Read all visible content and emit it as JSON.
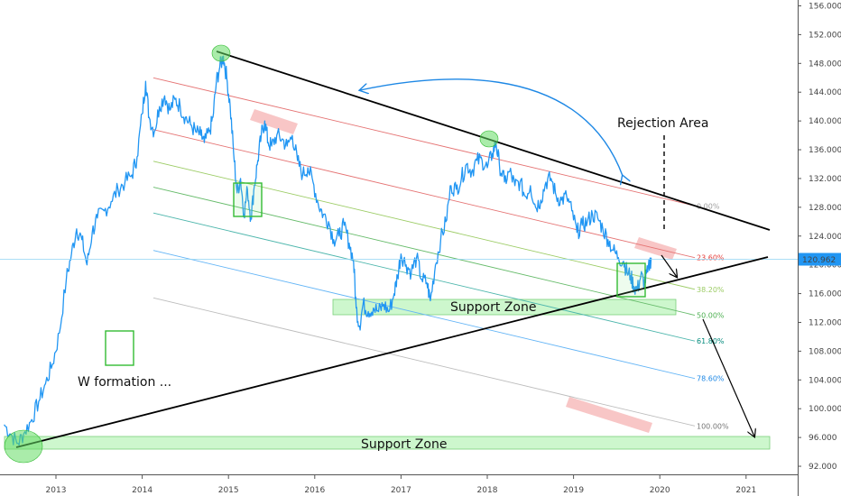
{
  "chart_data": {
    "type": "line",
    "title": "",
    "xlabel": "",
    "ylabel": "",
    "ylim": [
      91,
      156.5
    ],
    "xlim": [
      2012.4,
      2021.6
    ],
    "grid": false,
    "y_ticks": [
      "92.000",
      "96.000",
      "100.000",
      "104.000",
      "108.000",
      "112.000",
      "116.000",
      "120.000",
      "124.000",
      "128.000",
      "132.000",
      "136.000",
      "140.000",
      "144.000",
      "148.000",
      "152.000",
      "156.000"
    ],
    "x_ticks": [
      "2013",
      "2014",
      "2015",
      "2016",
      "2017",
      "2018",
      "2019",
      "2020",
      "2021"
    ],
    "current_price": {
      "value": 120.962,
      "label": "120.962",
      "color": "#2196f3"
    },
    "series": [
      {
        "color": "#2196f3",
        "points": [
          [
            2012.4,
            97.8
          ],
          [
            2012.48,
            96.4
          ],
          [
            2012.56,
            95.2
          ],
          [
            2012.64,
            96.8
          ],
          [
            2012.72,
            98.5
          ],
          [
            2012.8,
            101.0
          ],
          [
            2012.88,
            103.5
          ],
          [
            2012.96,
            106.2
          ],
          [
            2013.04,
            110.5
          ],
          [
            2013.12,
            118.0
          ],
          [
            2013.18,
            121.5
          ],
          [
            2013.24,
            125.0
          ],
          [
            2013.3,
            123.5
          ],
          [
            2013.36,
            120.0
          ],
          [
            2013.42,
            124.5
          ],
          [
            2013.48,
            126.5
          ],
          [
            2013.56,
            127.5
          ],
          [
            2013.64,
            128.8
          ],
          [
            2013.72,
            130.5
          ],
          [
            2013.8,
            131.5
          ],
          [
            2013.88,
            132.5
          ],
          [
            2013.94,
            135.0
          ],
          [
            2014.0,
            141.0
          ],
          [
            2014.04,
            145.5
          ],
          [
            2014.08,
            140.5
          ],
          [
            2014.14,
            138.5
          ],
          [
            2014.2,
            142.0
          ],
          [
            2014.26,
            143.5
          ],
          [
            2014.32,
            141.5
          ],
          [
            2014.38,
            143.0
          ],
          [
            2014.44,
            142.0
          ],
          [
            2014.5,
            140.5
          ],
          [
            2014.56,
            139.5
          ],
          [
            2014.62,
            138.5
          ],
          [
            2014.68,
            138.0
          ],
          [
            2014.72,
            137.0
          ],
          [
            2014.78,
            138.5
          ],
          [
            2014.82,
            140.5
          ],
          [
            2014.86,
            145.5
          ],
          [
            2014.9,
            147.5
          ],
          [
            2014.94,
            149.0
          ],
          [
            2014.98,
            146.0
          ],
          [
            2015.02,
            142.0
          ],
          [
            2015.06,
            135.5
          ],
          [
            2015.1,
            130.0
          ],
          [
            2015.14,
            132.0
          ],
          [
            2015.18,
            127.0
          ],
          [
            2015.22,
            130.5
          ],
          [
            2015.26,
            126.5
          ],
          [
            2015.3,
            131.0
          ],
          [
            2015.34,
            134.5
          ],
          [
            2015.38,
            138.0
          ],
          [
            2015.42,
            140.0
          ],
          [
            2015.46,
            137.0
          ],
          [
            2015.5,
            136.5
          ],
          [
            2015.56,
            138.0
          ],
          [
            2015.62,
            137.5
          ],
          [
            2015.68,
            136.5
          ],
          [
            2015.74,
            138.0
          ],
          [
            2015.8,
            134.5
          ],
          [
            2015.86,
            132.5
          ],
          [
            2015.92,
            133.5
          ],
          [
            2015.98,
            131.5
          ],
          [
            2016.04,
            128.5
          ],
          [
            2016.1,
            127.0
          ],
          [
            2016.16,
            126.0
          ],
          [
            2016.22,
            123.5
          ],
          [
            2016.28,
            124.0
          ],
          [
            2016.34,
            125.5
          ],
          [
            2016.4,
            123.0
          ],
          [
            2016.45,
            120.5
          ],
          [
            2016.48,
            114.0
          ],
          [
            2016.52,
            111.5
          ],
          [
            2016.56,
            114.5
          ],
          [
            2016.62,
            113.5
          ],
          [
            2016.68,
            114.0
          ],
          [
            2016.74,
            113.5
          ],
          [
            2016.8,
            114.5
          ],
          [
            2016.86,
            113.5
          ],
          [
            2016.92,
            116.0
          ],
          [
            2016.96,
            118.5
          ],
          [
            2017.0,
            121.5
          ],
          [
            2017.06,
            120.0
          ],
          [
            2017.12,
            119.0
          ],
          [
            2017.18,
            121.0
          ],
          [
            2017.24,
            118.0
          ],
          [
            2017.3,
            117.5
          ],
          [
            2017.34,
            115.0
          ],
          [
            2017.4,
            120.0
          ],
          [
            2017.46,
            123.5
          ],
          [
            2017.52,
            126.0
          ],
          [
            2017.58,
            131.0
          ],
          [
            2017.64,
            130.5
          ],
          [
            2017.7,
            132.0
          ],
          [
            2017.76,
            134.0
          ],
          [
            2017.82,
            133.0
          ],
          [
            2017.88,
            134.5
          ],
          [
            2017.94,
            134.5
          ],
          [
            2018.0,
            133.5
          ],
          [
            2018.06,
            135.5
          ],
          [
            2018.1,
            137.0
          ],
          [
            2018.14,
            134.0
          ],
          [
            2018.2,
            131.5
          ],
          [
            2018.26,
            133.0
          ],
          [
            2018.32,
            131.0
          ],
          [
            2018.38,
            131.5
          ],
          [
            2018.44,
            129.5
          ],
          [
            2018.5,
            131.0
          ],
          [
            2018.56,
            128.0
          ],
          [
            2018.62,
            129.0
          ],
          [
            2018.68,
            131.5
          ],
          [
            2018.74,
            132.0
          ],
          [
            2018.8,
            129.5
          ],
          [
            2018.86,
            129.0
          ],
          [
            2018.92,
            129.5
          ],
          [
            2018.98,
            127.5
          ],
          [
            2019.04,
            124.5
          ],
          [
            2019.1,
            125.5
          ],
          [
            2019.16,
            126.0
          ],
          [
            2019.22,
            127.0
          ],
          [
            2019.28,
            126.5
          ],
          [
            2019.34,
            125.0
          ],
          [
            2019.4,
            123.5
          ],
          [
            2019.46,
            122.0
          ],
          [
            2019.52,
            121.0
          ],
          [
            2019.58,
            120.5
          ],
          [
            2019.62,
            119.0
          ],
          [
            2019.66,
            118.5
          ],
          [
            2019.7,
            117.0
          ],
          [
            2019.74,
            116.5
          ],
          [
            2019.78,
            118.5
          ],
          [
            2019.82,
            117.5
          ],
          [
            2019.86,
            119.0
          ],
          [
            2019.9,
            121.0
          ]
        ]
      }
    ],
    "fib_levels": [
      {
        "label": "0.00%",
        "value": 128.2,
        "color": "#9e9e9e",
        "line_color": "#e57373"
      },
      {
        "label": "23.60%",
        "value": 121.0,
        "color": "#e53935",
        "line_color": "#e57373"
      },
      {
        "label": "38.20%",
        "value": 116.6,
        "color": "#9ccc65",
        "line_color": "#9ccc65"
      },
      {
        "label": "50.00%",
        "value": 113.0,
        "color": "#4caf50",
        "line_color": "#66bb6a"
      },
      {
        "label": "61.80%",
        "value": 109.4,
        "color": "#00897b",
        "line_color": "#4db6ac"
      },
      {
        "label": "78.60%",
        "value": 104.2,
        "color": "#1e88e5",
        "line_color": "#64b5f6"
      },
      {
        "label": "100.00%",
        "value": 97.6,
        "color": "#757575",
        "line_color": "#bdbdbd"
      }
    ],
    "annotations": {
      "rejection_area": "Rejection Area",
      "support_zone_upper": "Support Zone",
      "support_zone_lower": "Support Zone",
      "w_formation": "W formation ..."
    }
  },
  "colors": {
    "price": "#2196f3",
    "trendline": "#000000",
    "support_fill": "rgba(144,238,144,0.45)",
    "support_stroke": "#7ccf7c",
    "rejection_fill": "rgba(240,128,128,0.45)",
    "circle_fill": "rgba(100,220,100,0.55)",
    "box_stroke": "#33bb33",
    "arc": "#1e88e5"
  }
}
